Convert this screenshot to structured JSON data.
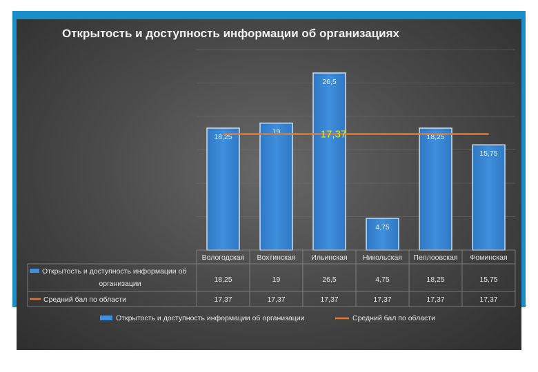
{
  "chart_data": {
    "type": "bar",
    "title": "Открытость  и доступность  информации  об  организациях",
    "categories": [
      "Вологодская",
      "Вохтинская",
      "Ильинская",
      "Никольская",
      "Пеллоовская",
      "Фоминская"
    ],
    "series": [
      {
        "name": "Открытость и доступность информации об организации",
        "type": "bar",
        "values": [
          18.25,
          19,
          26.5,
          4.75,
          18.25,
          15.75
        ],
        "labels": [
          "18,25",
          "19",
          "26,5",
          "4,75",
          "18,25",
          "15,75"
        ],
        "color": "#3f8fdc"
      },
      {
        "name": "Средний бал  по области",
        "type": "line",
        "values": [
          17.37,
          17.37,
          17.37,
          17.37,
          17.37,
          17.37
        ],
        "labels": [
          "17,37",
          "17,37",
          "17,37",
          "17,37",
          "17,37",
          "17,37"
        ],
        "color": "#e8772e"
      }
    ],
    "line_label": "17,37",
    "ylim": [
      0,
      30
    ],
    "grid": true,
    "data_table": true,
    "legend": {
      "position": "bottom",
      "items": [
        "Открытость и доступность информации об организации",
        "Средний бал  по области"
      ]
    },
    "table_row_labels": [
      "Открытость и доступность информации об организации",
      "Средний бал  по области"
    ]
  }
}
